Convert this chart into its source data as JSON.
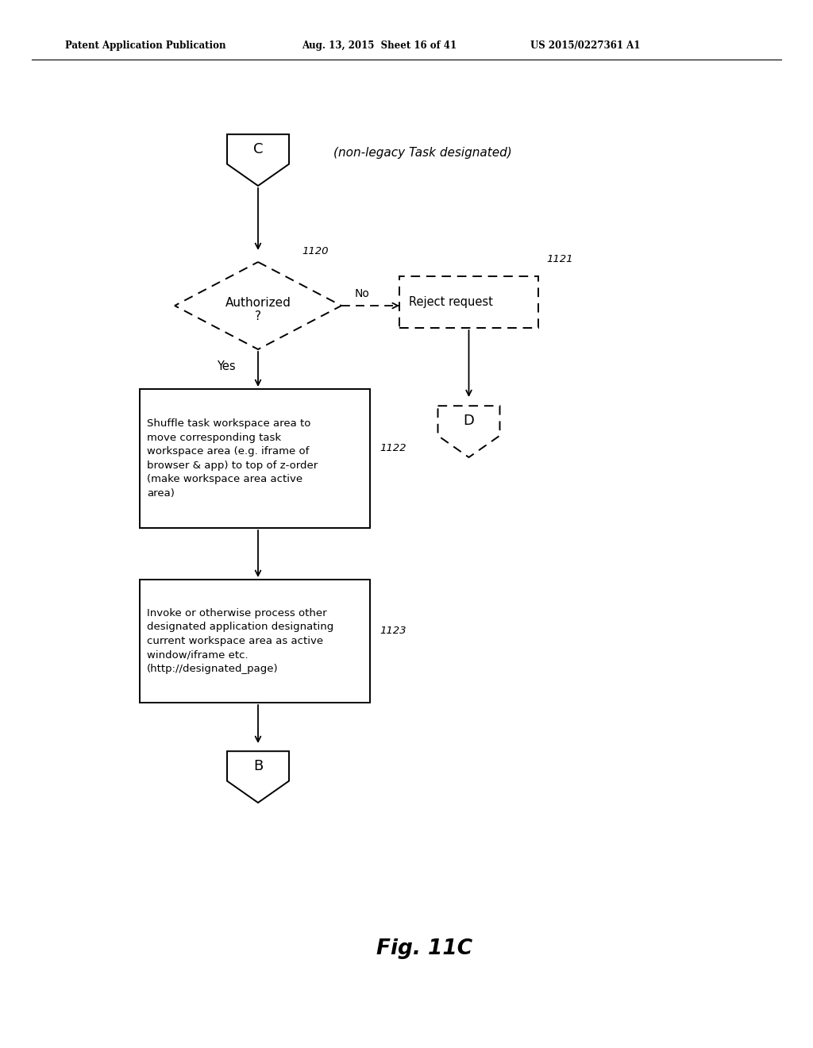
{
  "bg_color": "#ffffff",
  "header_left": "Patent Application Publication",
  "header_mid": "Aug. 13, 2015  Sheet 16 of 41",
  "header_right": "US 2015/0227361 A1",
  "fig_label": "Fig. 11C",
  "connector_C_label": "C",
  "connector_C_note": "(non-legacy Task designated)",
  "diamond_label": "Authorized\n?",
  "diamond_ref": "1120",
  "diamond_no_label": "No",
  "reject_box_label": "Reject request",
  "reject_box_ref": "1121",
  "connector_D_label": "D",
  "yes_label": "Yes",
  "box1_label": "Shuffle task workspace area to\nmove corresponding task\nworkspace area (e.g. iframe of\nbrowser & app) to top of z-order\n(make workspace area active\narea)",
  "box1_ref": "1122",
  "box2_label": "Invoke or otherwise process other\ndesignated application designating\ncurrent workspace area as active\nwindow/iframe etc.\n(http://designated_page)",
  "box2_ref": "1123",
  "connector_B_label": "B"
}
